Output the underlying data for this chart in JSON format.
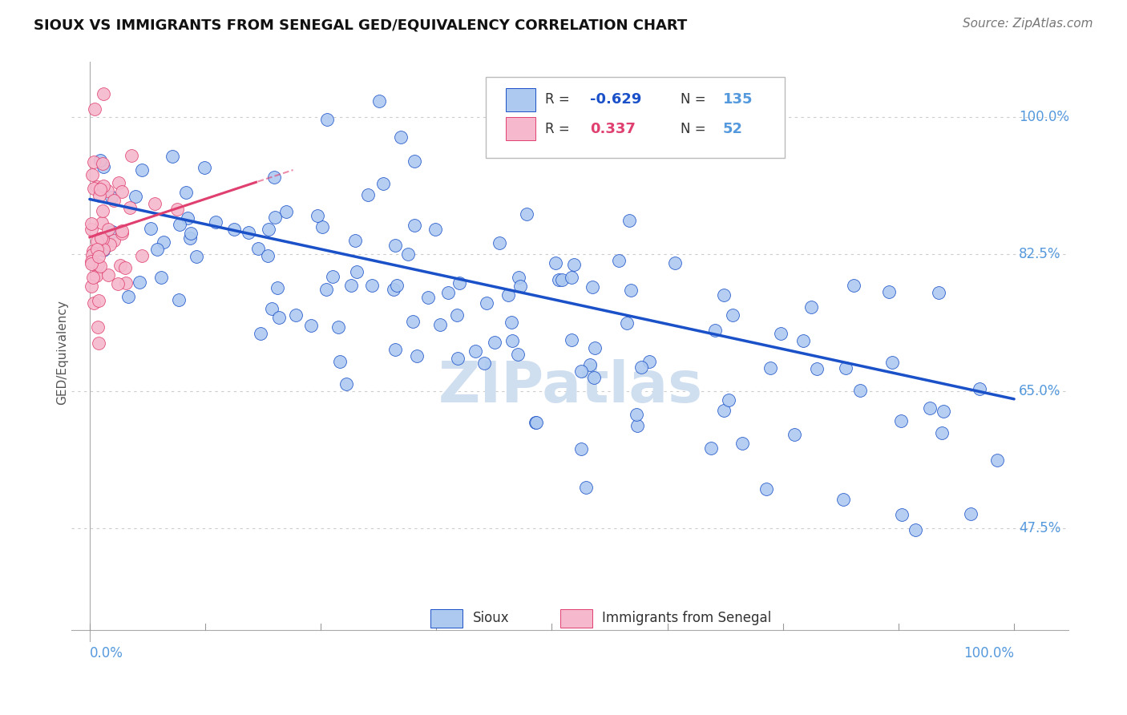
{
  "title": "SIOUX VS IMMIGRANTS FROM SENEGAL GED/EQUIVALENCY CORRELATION CHART",
  "source": "Source: ZipAtlas.com",
  "ylabel": "GED/Equivalency",
  "ytick_labels": [
    "100.0%",
    "82.5%",
    "65.0%",
    "47.5%"
  ],
  "ytick_values": [
    1.0,
    0.825,
    0.65,
    0.475
  ],
  "legend_blue_r": "-0.629",
  "legend_blue_n": "135",
  "legend_pink_r": "0.337",
  "legend_pink_n": "52",
  "blue_color": "#adc9f0",
  "pink_color": "#f5b8cc",
  "trendline_blue_color": "#1a50c8",
  "trendline_pink_color": "#e04070",
  "background_color": "#ffffff",
  "grid_color": "#cccccc",
  "axis_label_color": "#5599dd",
  "title_color": "#111111",
  "source_color": "#777777",
  "watermark": "ZIPatlas",
  "watermark_color": "#d0dff0",
  "legend_r_blue_color": "#1a50c8",
  "legend_r_pink_color": "#e04070",
  "legend_n_color": "#5599dd",
  "xmin": 0.0,
  "xmax": 1.0,
  "ymin": 0.35,
  "ymax": 1.05
}
